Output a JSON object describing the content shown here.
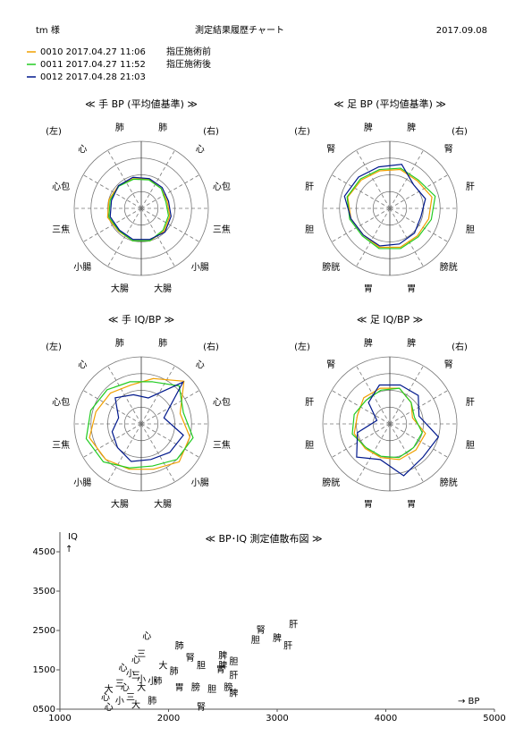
{
  "header": {
    "user": "tm 様",
    "title": "測定結果履歴チャート",
    "date": "2017.09.08"
  },
  "legend": [
    {
      "name": "0010  2017.04.27  11:06",
      "note": "指圧施術前",
      "color": "#f0a000"
    },
    {
      "name": "0011  2017.04.27  11:52",
      "note": "指圧施術後",
      "color": "#22cc22"
    },
    {
      "name": "0012  2017.04.28  21:03",
      "color": "#00188c"
    }
  ],
  "chart_data": [
    {
      "type": "radar",
      "title": "≪ 手 BP (平均値基準) ≫",
      "left_label": "(左)",
      "right_label": "(右)",
      "categories": [
        "肺",
        "心",
        "心包",
        "三焦",
        "小腸",
        "大腸",
        "大腸",
        "小腸",
        "三焦",
        "心包",
        "心",
        "肺"
      ],
      "category_colors": [
        "#00188c",
        "#00188c",
        "#00188c",
        "#7a0000",
        "#7a0000",
        "#7a0000",
        "#7a0000",
        "#7a0000",
        "#7a0000",
        "#00188c",
        "#00188c",
        "#00188c"
      ],
      "rlim": [
        0,
        100
      ],
      "rticks": [
        25,
        50,
        75,
        100
      ],
      "series": [
        {
          "color": "#f0a000",
          "values": [
            45,
            42,
            40,
            44,
            48,
            50,
            50,
            48,
            52,
            50,
            48,
            46
          ]
        },
        {
          "color": "#22cc22",
          "values": [
            44,
            42,
            38,
            42,
            46,
            50,
            50,
            47,
            50,
            48,
            47,
            45
          ]
        },
        {
          "color": "#00188c",
          "values": [
            46,
            44,
            42,
            46,
            50,
            48,
            48,
            46,
            48,
            46,
            48,
            48
          ]
        }
      ]
    },
    {
      "type": "radar",
      "title": "≪ 足 BP (平均値基準) ≫",
      "left_label": "(左)",
      "right_label": "(右)",
      "categories": [
        "脾",
        "腎",
        "肝",
        "胆",
        "膀胱",
        "胃",
        "胃",
        "膀胱",
        "胆",
        "肝",
        "腎",
        "脾"
      ],
      "category_colors": [
        "#00188c",
        "#00188c",
        "#00188c",
        "#7a0000",
        "#7a0000",
        "#7a0000",
        "#7a0000",
        "#7a0000",
        "#7a0000",
        "#00188c",
        "#00188c",
        "#00188c"
      ],
      "rlim": [
        0,
        100
      ],
      "rticks": [
        25,
        50,
        75,
        100
      ],
      "series": [
        {
          "color": "#f0a000",
          "values": [
            60,
            58,
            65,
            60,
            58,
            60,
            60,
            56,
            60,
            65,
            60,
            58
          ]
        },
        {
          "color": "#22cc22",
          "values": [
            62,
            60,
            70,
            64,
            60,
            62,
            62,
            58,
            62,
            66,
            62,
            60
          ]
        },
        {
          "color": "#00188c",
          "values": [
            68,
            50,
            55,
            48,
            52,
            55,
            58,
            56,
            60,
            70,
            66,
            64
          ]
        }
      ]
    },
    {
      "type": "radar",
      "title": "≪ 手 IQ/BP ≫",
      "left_label": "(左)",
      "right_label": "(右)",
      "categories": [
        "肺",
        "心",
        "心包",
        "三焦",
        "小腸",
        "大腸",
        "大腸",
        "小腸",
        "三焦",
        "心包",
        "心",
        "肺"
      ],
      "category_colors": [
        "#00188c",
        "#00188c",
        "#00188c",
        "#7a0000",
        "#7a0000",
        "#7a0000",
        "#7a0000",
        "#7a0000",
        "#7a0000",
        "#00188c",
        "#00188c",
        "#00188c"
      ],
      "rlim": [
        0,
        100
      ],
      "rticks": [
        25,
        50,
        75,
        100
      ],
      "series": [
        {
          "color": "#f0a000",
          "values": [
            70,
            90,
            60,
            75,
            80,
            70,
            70,
            75,
            80,
            70,
            65,
            60
          ]
        },
        {
          "color": "#22cc22",
          "values": [
            65,
            80,
            65,
            80,
            75,
            65,
            68,
            80,
            85,
            78,
            72,
            65
          ]
        },
        {
          "color": "#00188c",
          "values": [
            40,
            88,
            35,
            65,
            60,
            55,
            58,
            50,
            45,
            35,
            55,
            45
          ]
        }
      ]
    },
    {
      "type": "radar",
      "title": "≪ 足 IQ/BP ≫",
      "left_label": "(左)",
      "right_label": "(右)",
      "categories": [
        "脾",
        "腎",
        "肝",
        "胆",
        "膀胱",
        "胃",
        "胃",
        "膀胱",
        "胆",
        "肝",
        "腎",
        "脾"
      ],
      "category_colors": [
        "#00188c",
        "#00188c",
        "#00188c",
        "#7a0000",
        "#7a0000",
        "#7a0000",
        "#7a0000",
        "#7a0000",
        "#7a0000",
        "#00188c",
        "#00188c",
        "#00188c"
      ],
      "rlim": [
        0,
        100
      ],
      "rticks": [
        25,
        50,
        75,
        100
      ],
      "series": [
        {
          "color": "#f0a000",
          "values": [
            55,
            45,
            35,
            55,
            55,
            55,
            52,
            52,
            55,
            50,
            55,
            55
          ]
        },
        {
          "color": "#22cc22",
          "values": [
            55,
            45,
            38,
            50,
            50,
            52,
            50,
            50,
            58,
            55,
            50,
            52
          ]
        },
        {
          "color": "#00188c",
          "values": [
            60,
            60,
            45,
            75,
            70,
            80,
            55,
            70,
            50,
            20,
            45,
            60
          ]
        }
      ]
    },
    {
      "type": "scatter",
      "title": "≪ BP･IQ 測定値散布図 ≫",
      "ylabel": "IQ",
      "yarrow": "↑",
      "xlabel": "→ BP",
      "xlim": [
        1000,
        5000
      ],
      "xticks": [
        1000,
        2000,
        3000,
        4000,
        5000
      ],
      "ylim": [
        500,
        5000
      ],
      "yticks": [
        {
          "value": 500,
          "label": "0500"
        },
        1500,
        2500,
        3500,
        4500
      ],
      "series": [
        {
          "color": "#f0a000",
          "x": [
            1450,
            1420,
            1550,
            1580,
            1650,
            1700,
            1750,
            1900,
            2050,
            2250,
            2300,
            2480,
            2500,
            2600
          ],
          "y": [
            1000,
            800,
            1150,
            1550,
            1400,
            1750,
            1250,
            1200,
            1450,
            1050,
            1600,
            1500,
            1600,
            1350
          ],
          "labels": [
            "大",
            "心",
            "三",
            "心",
            "小",
            "心",
            "小",
            "肺",
            "肺",
            "膀",
            "胆",
            "胃",
            "脾",
            "肝"
          ]
        },
        {
          "color": "#22cc22",
          "x": [
            1600,
            1700,
            1750,
            1800,
            1850,
            1950,
            2100,
            2200,
            2500,
            2600,
            2800,
            2850,
            3000,
            3100,
            3150
          ],
          "y": [
            1050,
            1350,
            1900,
            2350,
            1200,
            1600,
            2100,
            1800,
            1850,
            1700,
            2250,
            2500,
            2300,
            2100,
            2650
          ],
          "labels": [
            "心",
            "三",
            "三",
            "心",
            "小",
            "大",
            "肺",
            "腎",
            "脾",
            "胆",
            "胆",
            "腎",
            "脾",
            "肝",
            "肝"
          ]
        },
        {
          "color": "#00188c",
          "x": [
            1450,
            1550,
            1650,
            1700,
            1750,
            1850,
            2100,
            2300,
            2400,
            2550,
            2600
          ],
          "y": [
            550,
            700,
            800,
            600,
            1050,
            700,
            1050,
            550,
            1000,
            1050,
            900
          ],
          "labels": [
            "心",
            "小",
            "三",
            "大",
            "大",
            "肺",
            "胃",
            "腎",
            "胆",
            "膀",
            "脾"
          ]
        }
      ]
    }
  ]
}
